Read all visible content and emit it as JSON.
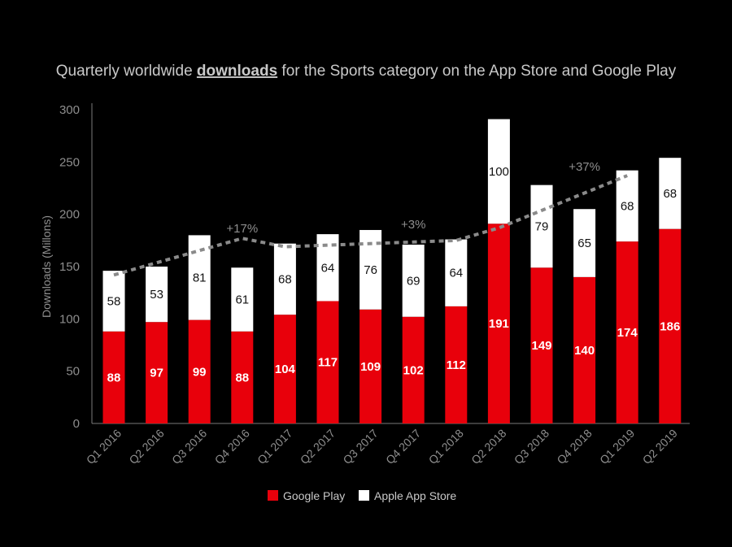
{
  "chart_data": {
    "type": "bar",
    "stacked": true,
    "title": {
      "prefix": "Quarterly worldwide ",
      "emphasis": "downloads",
      "suffix": " for the Sports category on the App Store and Google Play"
    },
    "ylabel": "Downloads (Millons)",
    "xlabel": "",
    "ylim": [
      0,
      300
    ],
    "yticks": [
      "0",
      "50",
      "100",
      "150",
      "200",
      "250",
      "300"
    ],
    "categories": [
      "Q1 2016",
      "Q2 2016",
      "Q3 2016",
      "Q4 2016",
      "Q1 2017",
      "Q2 2017",
      "Q3 2017",
      "Q4 2017",
      "Q1 2018",
      "Q2 2018",
      "Q3 2018",
      "Q4 2018",
      "Q1 2019",
      "Q2 2019"
    ],
    "series": [
      {
        "name": "Google Play",
        "color": "#e8000b",
        "values": [
          88,
          97,
          99,
          88,
          104,
          117,
          109,
          102,
          112,
          191,
          149,
          140,
          174,
          186
        ]
      },
      {
        "name": "Apple App Store",
        "color": "#ffffff",
        "values": [
          58,
          53,
          81,
          61,
          68,
          64,
          76,
          69,
          64,
          100,
          79,
          65,
          68,
          68
        ]
      }
    ],
    "trend": {
      "color": "#8a8a8a",
      "points": [
        {
          "x": "Q1 2016",
          "y": 142
        },
        {
          "x": "Q4 2016",
          "y": 177
        },
        {
          "x": "Q1 2017",
          "y": 169
        },
        {
          "x": "Q1 2018",
          "y": 175
        },
        {
          "x": "Q2 2018",
          "y": 187
        },
        {
          "x": "Q1 2019",
          "y": 237
        }
      ]
    },
    "annotations": [
      {
        "text": "+17%",
        "x": "Q4 2016",
        "y": 178
      },
      {
        "text": "+3%",
        "x": "Q4 2017",
        "y": 182
      },
      {
        "text": "+37%",
        "x": "Q4 2018",
        "y": 237
      }
    ],
    "legend": {
      "position": "bottom",
      "items": [
        "Google Play",
        "Apple App Store"
      ]
    },
    "grid": false
  }
}
